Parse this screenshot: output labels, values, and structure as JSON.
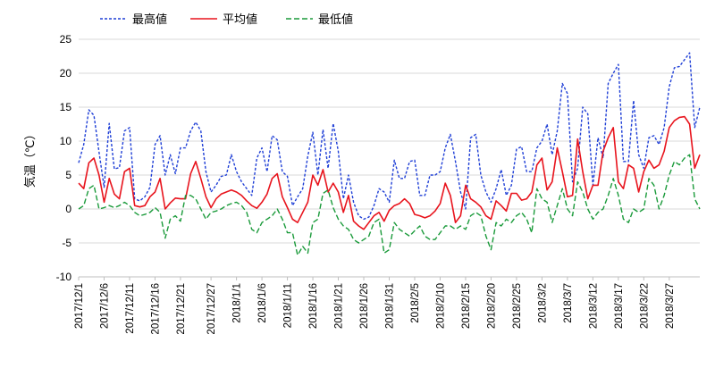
{
  "chart_data": {
    "type": "line",
    "ylabel": "気温（℃）",
    "ylim": [
      -10,
      25
    ],
    "yticks": [
      -10,
      -5,
      0,
      5,
      10,
      15,
      20,
      25
    ],
    "grid": "horizontal",
    "legend_position": "top",
    "start_date": "2017-12-01",
    "x_tick_labels": [
      "2017/12/1",
      "2017/12/6",
      "2017/12/11",
      "2017/12/16",
      "2017/12/21",
      "2017/12/27",
      "2018/1/1",
      "2018/1/6",
      "2018/1/11",
      "2018/1/16",
      "2018/1/21",
      "2018/1/26",
      "2018/1/31",
      "2018/2/5",
      "2018/2/10",
      "2018/2/15",
      "2018/2/20",
      "2018/2/25",
      "2018/3/2",
      "2018/3/7",
      "2018/3/12",
      "2018/3/17",
      "2018/3/22",
      "2018/3/27"
    ],
    "series": [
      {
        "name": "最高値",
        "color": "#1f3fd6",
        "style": "dotted",
        "values": [
          6.8,
          9.5,
          14.6,
          13.8,
          8.4,
          3.2,
          12.6,
          5.9,
          6.1,
          11.5,
          12.0,
          1.5,
          1.2,
          1.8,
          3.2,
          9.5,
          10.8,
          5.0,
          8.0,
          5.2,
          9.0,
          9.0,
          11.5,
          12.8,
          11.5,
          5.5,
          2.5,
          3.5,
          4.8,
          5.0,
          8.0,
          5.5,
          4.0,
          3.0,
          2.0,
          7.5,
          9.0,
          5.5,
          10.8,
          10.2,
          5.5,
          4.8,
          0.5,
          1.8,
          3.0,
          7.8,
          11.3,
          5.0,
          11.7,
          6.0,
          12.6,
          8.5,
          1.5,
          5.0,
          1.0,
          -1.0,
          -1.5,
          -1.2,
          0.5,
          3.0,
          2.5,
          1.0,
          7.2,
          4.5,
          4.5,
          7.0,
          7.2,
          2.0,
          2.0,
          5.0,
          5.0,
          5.5,
          9.0,
          11.0,
          7.0,
          2.5,
          0.0,
          10.5,
          11.0,
          5.0,
          2.5,
          1.0,
          3.0,
          5.8,
          2.0,
          3.5,
          8.8,
          9.2,
          5.5,
          5.5,
          9.0,
          10.0,
          12.5,
          8.0,
          11.5,
          18.5,
          17.0,
          4.0,
          6.0,
          15.0,
          14.0,
          3.5,
          10.5,
          7.5,
          18.5,
          20.0,
          21.3,
          7.0,
          7.0,
          16.0,
          8.0,
          6.0,
          10.5,
          10.8,
          9.5,
          12.0,
          18.0,
          20.8,
          21.0,
          22.0,
          23.0,
          12.0,
          15.0
        ]
      },
      {
        "name": "平均値",
        "color": "#e8141d",
        "style": "solid",
        "values": [
          3.8,
          3.0,
          6.8,
          7.5,
          5.0,
          1.0,
          4.5,
          2.2,
          1.5,
          5.5,
          6.0,
          0.5,
          0.3,
          0.5,
          1.8,
          2.5,
          4.5,
          0.0,
          0.9,
          1.6,
          1.5,
          1.5,
          5.2,
          7.0,
          4.5,
          1.8,
          0.2,
          1.5,
          2.2,
          2.5,
          2.8,
          2.5,
          2.0,
          1.2,
          0.5,
          0.1,
          1.0,
          2.2,
          4.5,
          5.2,
          1.8,
          0.2,
          -1.5,
          -2.0,
          -0.5,
          1.0,
          5.0,
          3.5,
          5.8,
          2.5,
          3.8,
          2.5,
          -0.5,
          2.0,
          -1.8,
          -2.5,
          -3.0,
          -2.0,
          -1.0,
          -0.5,
          -1.8,
          -0.2,
          0.5,
          0.8,
          1.5,
          0.8,
          -0.8,
          -1.0,
          -1.3,
          -1.0,
          -0.3,
          0.8,
          3.8,
          2.0,
          -2.0,
          -1.0,
          3.5,
          1.5,
          1.0,
          0.3,
          -1.0,
          -1.5,
          1.2,
          0.5,
          -0.3,
          2.3,
          2.3,
          1.3,
          1.5,
          2.5,
          6.5,
          7.5,
          2.8,
          4.0,
          9.0,
          5.5,
          1.8,
          2.0,
          10.3,
          5.5,
          1.5,
          3.5,
          3.5,
          8.5,
          10.5,
          12.0,
          4.0,
          3.0,
          6.5,
          6.0,
          2.5,
          5.5,
          7.2,
          6.0,
          6.5,
          8.5,
          12.0,
          13.0,
          13.5,
          13.6,
          12.5,
          6.0,
          8.0
        ]
      },
      {
        "name": "最低値",
        "color": "#1a9a3a",
        "style": "dashed",
        "values": [
          0.0,
          0.5,
          3.0,
          3.5,
          0.0,
          0.2,
          0.5,
          0.2,
          0.5,
          1.0,
          0.5,
          -0.5,
          -1.0,
          -0.8,
          -0.5,
          0.2,
          -0.5,
          -4.3,
          -1.5,
          -1.0,
          -1.8,
          2.0,
          2.0,
          1.5,
          0.0,
          -1.5,
          -0.5,
          -0.3,
          0.0,
          0.5,
          0.8,
          1.0,
          0.5,
          -0.5,
          -3.0,
          -3.5,
          -2.0,
          -1.5,
          -1.0,
          0.0,
          -1.5,
          -3.5,
          -3.5,
          -6.8,
          -5.5,
          -6.5,
          -2.0,
          -1.5,
          2.3,
          2.8,
          0.2,
          -1.5,
          -2.5,
          -3.0,
          -4.5,
          -5.0,
          -4.5,
          -4.0,
          -2.0,
          -1.5,
          -6.5,
          -6.0,
          -2.0,
          -3.0,
          -3.5,
          -4.0,
          -3.2,
          -2.5,
          -4.0,
          -4.5,
          -4.5,
          -3.5,
          -2.5,
          -2.5,
          -3.0,
          -2.5,
          -3.0,
          -1.0,
          -0.5,
          -1.0,
          -4.0,
          -6.0,
          -2.0,
          -2.5,
          -1.5,
          -2.0,
          -1.0,
          -0.5,
          -1.5,
          -3.5,
          3.0,
          1.5,
          1.0,
          -2.0,
          0.5,
          3.0,
          0.0,
          -1.0,
          4.0,
          2.5,
          0.0,
          -1.5,
          -0.5,
          0.0,
          2.0,
          4.5,
          2.0,
          -1.5,
          -2.0,
          0.0,
          -0.5,
          0.0,
          4.5,
          3.5,
          0.0,
          2.0,
          5.0,
          7.0,
          6.5,
          7.5,
          8.0,
          1.5,
          0.0
        ]
      }
    ]
  }
}
